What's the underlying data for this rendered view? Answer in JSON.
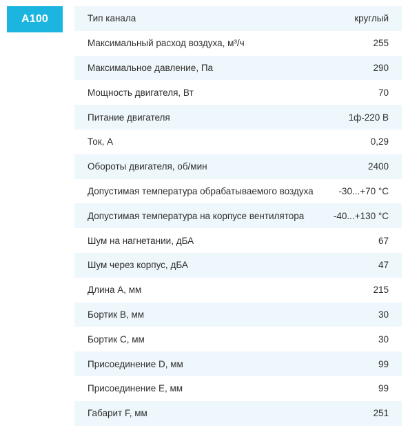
{
  "model": "A100",
  "specs": [
    {
      "label": "Тип канала",
      "value": "круглый"
    },
    {
      "label": "Максимальный расход воздуха, м³/ч",
      "value": "255"
    },
    {
      "label": "Максимальное давление, Па",
      "value": "290"
    },
    {
      "label": "Мощность двигателя, Вт",
      "value": "70"
    },
    {
      "label": "Питание двигателя",
      "value": "1ф-220 В"
    },
    {
      "label": "Ток, А",
      "value": "0,29"
    },
    {
      "label": "Обороты двигателя, об/мин",
      "value": "2400"
    },
    {
      "label": "Допустимая температура обрабатываемого воздуха",
      "value": "-30...+70 °C"
    },
    {
      "label": "Допустимая температура на корпусе вентилятора",
      "value": "-40...+130 °C"
    },
    {
      "label": "Шум на нагнетании, дБА",
      "value": "67"
    },
    {
      "label": "Шум через корпус, дБА",
      "value": "47"
    },
    {
      "label": "Длина А, мм",
      "value": "215"
    },
    {
      "label": "Бортик В, мм",
      "value": "30"
    },
    {
      "label": "Бортик С, мм",
      "value": "30"
    },
    {
      "label": "Присоединение D, мм",
      "value": "99"
    },
    {
      "label": "Присоединение Е, мм",
      "value": "99"
    },
    {
      "label": "Габарит F, мм",
      "value": "251"
    }
  ],
  "colors": {
    "badge": "#1cb5e0",
    "row_stripe": "#eef7fb",
    "text": "#2e2e2e"
  }
}
